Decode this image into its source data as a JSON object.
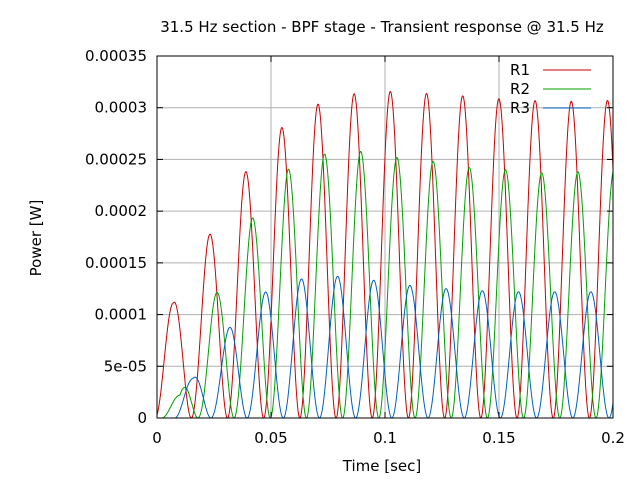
{
  "chart_data": {
    "type": "line",
    "title": "31.5 Hz section - BPF stage - Transient response @ 31.5 Hz",
    "xlabel": "Time [sec]",
    "ylabel": "Power [W]",
    "xlim": [
      0,
      0.2
    ],
    "ylim": [
      0,
      0.00035
    ],
    "x_ticks": [
      0,
      0.05,
      0.1,
      0.15,
      0.2
    ],
    "x_tick_labels": [
      "0",
      "0.05",
      "0.1",
      "0.15",
      "0.2"
    ],
    "y_ticks": [
      0,
      5e-05,
      0.0001,
      0.00015,
      0.0002,
      0.00025,
      0.0003,
      0.00035
    ],
    "y_tick_labels": [
      "0",
      "5e-05",
      "0.0001",
      "0.00015",
      "0.0002",
      "0.00025",
      "0.0003",
      "0.00035"
    ],
    "grid": true,
    "legend_position": "top-right",
    "series": [
      {
        "name": "R1",
        "color": "#cc0000",
        "peak_times": [
          0.0071,
          0.0214,
          0.0371,
          0.0529,
          0.0686,
          0.0843,
          0.1,
          0.1157,
          0.1314,
          0.1471,
          0.1629,
          0.1786,
          0.195
        ],
        "peak_values": [
          0.000111,
          0.000171,
          0.000233,
          0.000278,
          0.000302,
          0.000313,
          0.000316,
          0.000314,
          0.000312,
          0.000309,
          0.000307,
          0.000306,
          0.000307
        ]
      },
      {
        "name": "R2",
        "color": "#00a000",
        "peak_times": [
          0.01,
          0.0243,
          0.0414,
          0.0571,
          0.0729,
          0.0886,
          0.1043,
          0.1214,
          0.1371,
          0.1529,
          0.1686,
          0.1843,
          0.2
        ],
        "peak_values": [
          2.2e-05,
          0.000113,
          0.000192,
          0.00024,
          0.000255,
          0.000258,
          0.000252,
          0.000248,
          0.000242,
          0.00024,
          0.000237,
          0.000238,
          0.00024
        ]
      },
      {
        "name": "R3",
        "color": "#0060c0",
        "peak_times": [
          0.0157,
          0.0329,
          0.0486,
          0.0643,
          0.08,
          0.0957,
          0.1114,
          0.1271,
          0.1429,
          0.1586,
          0.1743,
          0.19
        ],
        "peak_values": [
          3.8e-05,
          9.1e-05,
          0.000124,
          0.000135,
          0.000137,
          0.000133,
          0.000128,
          0.000125,
          0.000123,
          0.000122,
          0.000122,
          0.000122
        ]
      }
    ]
  }
}
